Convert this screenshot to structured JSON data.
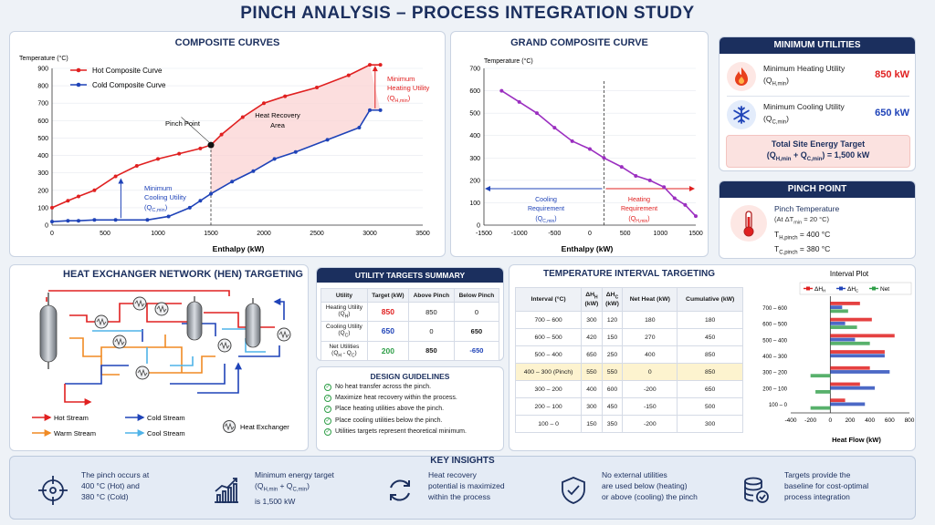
{
  "page_title": "PINCH ANALYSIS – PROCESS INTEGRATION STUDY",
  "composite": {
    "title": "COMPOSITE CURVES",
    "y_label": "Temperature (°C)",
    "x_label": "Enthalpy (kW)",
    "legend": [
      "Hot Composite Curve",
      "Cold Composite Curve"
    ],
    "ann_pinch": "Pinch Point",
    "ann_recovery_1": "Heat Recovery",
    "ann_recovery_2": "Area",
    "ann_hot_1": "Minimum",
    "ann_hot_2": "Heating Utility",
    "ann_hot_3": "(Q",
    "ann_cold_1": "Minimum",
    "ann_cold_2": "Cooling Utility",
    "ann_cold_3": "(Q",
    "sub_hmin": "H,min",
    "sub_cmin": "C,min",
    "paren": ")"
  },
  "grand": {
    "title": "GRAND COMPOSITE CURVE",
    "y_label": "Temperature (°C)",
    "x_label": "Enthalpy (kW)",
    "cool_1": "Cooling",
    "cool_2": "Requirement",
    "cool_3": "(Q",
    "heat_1": "Heating",
    "heat_2": "Requirement",
    "heat_3": "(Q",
    "sub_cmin": "C,min",
    "sub_hmin": "H,min",
    "paren": ")"
  },
  "min_util": {
    "title": "MINIMUM UTILITIES",
    "heating_label": "Minimum Heating Utility",
    "heating_sym": "(Q",
    "heating_sub": "H,min",
    "heating_close": ")",
    "heating_value": "850 kW",
    "cooling_label": "Minimum Cooling Utility",
    "cooling_sym": "(Q",
    "cooling_sub": "C,min",
    "cooling_close": ")",
    "cooling_value": "650 kW",
    "total_label": "Total Site Energy Target",
    "total_f1": "(Q",
    "total_f2": "H,min",
    "total_f3": " + Q",
    "total_f4": "C,min",
    "total_f5": ") = 1,500 kW"
  },
  "pinch": {
    "title": "PINCH POINT",
    "label": "Pinch Temperature",
    "cond_1": "(At ΔT",
    "cond_sub": "min",
    "cond_2": " = 20 °C)",
    "th_1": "T",
    "th_sub": "H,pinch",
    "th_2": " = 400 °C",
    "tc_1": "T",
    "tc_sub": "C,pinch",
    "tc_2": " = 380 °C"
  },
  "hen": {
    "title": "HEAT EXCHANGER NETWORK (HEN) TARGETING",
    "legend": {
      "hot": "Hot Stream",
      "cold": "Cold Stream",
      "warm": "Warm Stream",
      "cool": "Cool Stream",
      "hx": "Heat Exchanger"
    }
  },
  "util_summary": {
    "title": "UTILITY TARGETS SUMMARY",
    "headers": [
      "Utility",
      "Target (kW)",
      "Above Pinch",
      "Below Pinch"
    ],
    "rows": [
      {
        "name": "Heating Utility",
        "sym": "(Q",
        "sub": "H",
        "close": ")",
        "target": "850",
        "above": "850",
        "below": "0"
      },
      {
        "name": "Cooling Utility",
        "sym": "(Q",
        "sub": "C",
        "close": ")",
        "target": "650",
        "above": "0",
        "below": "650"
      },
      {
        "name": "Net Utilities",
        "sym": "(Q",
        "sub": "H",
        "mid": " - Q",
        "sub2": "C",
        "close": ")",
        "target": "200",
        "above": "850",
        "below": "-650"
      }
    ]
  },
  "guidelines": {
    "title": "DESIGN GUIDELINES",
    "items": [
      "No heat transfer across the pinch.",
      "Maximize heat recovery within the process.",
      "Place heating utilities above the pinch.",
      "Place cooling utilities below the pinch.",
      "Utilities targets represent theoretical minimum."
    ]
  },
  "temp_interval": {
    "title": "TEMPERATURE INTERVAL TARGETING",
    "headers": [
      "Interval (°C)",
      "ΔH",
      "ΔH",
      "Net Heat (kW)",
      "Cumulative (kW)"
    ],
    "header_subs": [
      "H (kW)",
      "C (kW)"
    ],
    "rows": [
      [
        "700 – 600",
        "300",
        "120",
        "180",
        "180"
      ],
      [
        "600 – 500",
        "420",
        "150",
        "270",
        "450"
      ],
      [
        "500 – 400",
        "650",
        "250",
        "400",
        "850"
      ],
      [
        "400 – 300 (Pinch)",
        "550",
        "550",
        "0",
        "850"
      ],
      [
        "300 – 200",
        "400",
        "600",
        "-200",
        "650"
      ],
      [
        "200 – 100",
        "300",
        "450",
        "-150",
        "500"
      ],
      [
        "100 – 0",
        "150",
        "350",
        "-200",
        "300"
      ]
    ]
  },
  "interval_plot": {
    "title": "Interval Plot",
    "x_label": "Heat Flow (kW)"
  },
  "insights": {
    "title": "KEY INSIGHTS",
    "items": [
      {
        "l1": "The pinch occurs at",
        "l2": "400 °C (Hot) and",
        "l3": "380 °C (Cold)"
      },
      {
        "l1": "Minimum energy target",
        "l2a": "(Q",
        "l2b": "H,min",
        "l2c": " + Q",
        "l2d": "C,min",
        "l2e": ")",
        "l3": "is 1,500 kW"
      },
      {
        "l1": "Heat recovery",
        "l2": "potential is maximized",
        "l3": "within the process"
      },
      {
        "l1": "No external utilities",
        "l2": "are used below (heating)",
        "l3": "or above (cooling) the pinch"
      },
      {
        "l1": "Targets provide the",
        "l2": "baseline for cost-optimal",
        "l3": "process integration"
      }
    ]
  },
  "colors": {
    "hot": "#e02020",
    "cold": "#1f43b8",
    "gcc": "#9b2fc0",
    "navy": "#1b2f5e",
    "green": "#2e9e47",
    "orange": "#f08a24",
    "lightblue": "#4fb3e8"
  },
  "chart_data": [
    {
      "type": "line",
      "title": "COMPOSITE CURVES",
      "xlabel": "Enthalpy (kW)",
      "ylabel": "Temperature (°C)",
      "xlim": [
        0,
        3500
      ],
      "ylim": [
        0,
        900
      ],
      "x_ticks": [
        0,
        500,
        1000,
        1500,
        2000,
        2500,
        3000,
        3500
      ],
      "y_ticks": [
        0,
        100,
        200,
        300,
        400,
        500,
        600,
        700,
        800,
        900
      ],
      "series": [
        {
          "name": "Hot Composite Curve",
          "color": "#e02020",
          "x": [
            0,
            150,
            250,
            400,
            600,
            800,
            1000,
            1200,
            1400,
            1500,
            1600,
            1800,
            2000,
            2200,
            2500,
            2800,
            3000,
            3100
          ],
          "y": [
            100,
            140,
            165,
            200,
            280,
            340,
            380,
            410,
            440,
            460,
            520,
            620,
            700,
            740,
            790,
            860,
            920,
            920
          ]
        },
        {
          "name": "Cold Composite Curve",
          "color": "#1f43b8",
          "x": [
            0,
            150,
            250,
            400,
            600,
            900,
            1100,
            1300,
            1400,
            1500,
            1700,
            1900,
            2100,
            2300,
            2600,
            2900,
            3000,
            3100
          ],
          "y": [
            20,
            25,
            25,
            30,
            30,
            30,
            50,
            100,
            140,
            180,
            250,
            310,
            380,
            420,
            490,
            560,
            660,
            660
          ]
        }
      ]
    },
    {
      "type": "line",
      "title": "GRAND COMPOSITE CURVE",
      "xlabel": "Enthalpy (kW)",
      "ylabel": "Temperature (°C)",
      "xlim": [
        -1500,
        1500
      ],
      "ylim": [
        0,
        700
      ],
      "x_ticks": [
        -1500,
        -1000,
        -500,
        0,
        500,
        1000,
        1500
      ],
      "y_ticks": [
        0,
        100,
        200,
        300,
        400,
        500,
        600,
        700
      ],
      "series": [
        {
          "name": "",
          "color": "#9b2fc0",
          "x": [
            -1250,
            -1000,
            -750,
            -500,
            -250,
            0,
            200,
            450,
            650,
            850,
            1050,
            1200,
            1350,
            1500
          ],
          "y": [
            600,
            550,
            500,
            435,
            375,
            340,
            300,
            260,
            220,
            200,
            170,
            120,
            90,
            40
          ]
        }
      ],
      "pinch_x": 200
    },
    {
      "type": "bar",
      "title": "Interval Plot",
      "xlabel": "Heat Flow (kW)",
      "xlim": [
        -400,
        800
      ],
      "x_ticks": [
        -400,
        -200,
        0,
        200,
        400,
        600,
        800
      ],
      "categories": [
        "700 – 600",
        "600 – 500",
        "500 – 400",
        "400 – 300",
        "300 – 200",
        "200 – 100",
        "100 – 0"
      ],
      "series": [
        {
          "name": "ΔH",
          "color": "#e02020",
          "values": [
            300,
            420,
            650,
            550,
            400,
            300,
            150
          ]
        },
        {
          "name": "ΔH",
          "color": "#1f43b8",
          "values": [
            120,
            150,
            250,
            550,
            600,
            450,
            350
          ]
        },
        {
          "name": "Net",
          "color": "#2e9e47",
          "values": [
            180,
            270,
            400,
            0,
            -200,
            -150,
            -200
          ]
        }
      ]
    }
  ]
}
